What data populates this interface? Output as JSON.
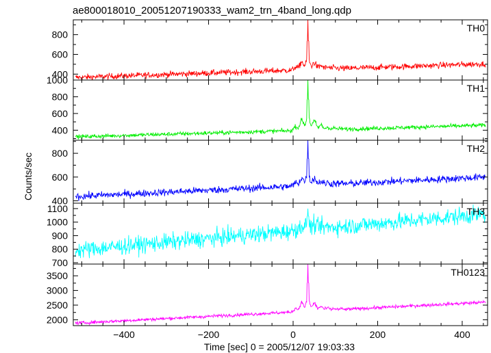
{
  "chart_data": {
    "type": "line",
    "title": "ae800018010_20051207190333_wam2_trn_4band_long.qdp",
    "xlabel": "Time [sec] 0 = 2005/12/07 19:03:33",
    "ylabel": "Counts/sec",
    "xlim": [
      -520,
      460
    ],
    "x_ticks": [
      -400,
      -200,
      0,
      200,
      400
    ],
    "x_tick_labels": [
      "−400",
      "−200",
      "0",
      "200",
      "400"
    ],
    "x_step": 1,
    "peak_time": 35,
    "series": [
      {
        "name": "TH0",
        "color": "#ff0000",
        "ylim": [
          340,
          950
        ],
        "y_ticks": [
          400,
          600,
          800
        ],
        "y_tick_labels": [
          "400",
          "600",
          "800"
        ],
        "extra_top_label": "1000",
        "baseline_start": 365,
        "baseline_end": 505,
        "noise": 22,
        "peak": 950,
        "bump": 130
      },
      {
        "name": "TH1",
        "color": "#00ee00",
        "ylim": [
          280,
          1000
        ],
        "y_ticks": [
          400,
          600,
          800
        ],
        "y_tick_labels": [
          "400",
          "600",
          "800"
        ],
        "baseline_start": 320,
        "baseline_end": 460,
        "noise": 18,
        "peak": 1000,
        "bump": 200
      },
      {
        "name": "TH2",
        "color": "#0000ff",
        "ylim": [
          380,
          910
        ],
        "y_ticks": [
          400,
          600,
          800
        ],
        "y_tick_labels": [
          "400",
          "600",
          "800"
        ],
        "baseline_start": 435,
        "baseline_end": 600,
        "noise": 22,
        "peak": 910,
        "bump": 110
      },
      {
        "name": "TH3",
        "color": "#00ffff",
        "ylim": [
          690,
          1140
        ],
        "y_ticks": [
          700,
          800,
          900,
          1000,
          1100
        ],
        "y_tick_labels": [
          "700",
          "800",
          "900",
          "1000",
          "1100"
        ],
        "baseline_start": 790,
        "baseline_end": 1060,
        "noise": 45,
        "peak": 1100,
        "bump": 60
      },
      {
        "name": "TH0123",
        "color": "#ff00ff",
        "ylim": [
          1800,
          3900
        ],
        "y_ticks": [
          2000,
          2500,
          3000,
          3500
        ],
        "y_tick_labels": [
          "2000",
          "2500",
          "3000",
          "3500"
        ],
        "baseline_start": 1880,
        "baseline_end": 2600,
        "noise": 40,
        "peak": 3900,
        "bump": 500
      }
    ]
  }
}
